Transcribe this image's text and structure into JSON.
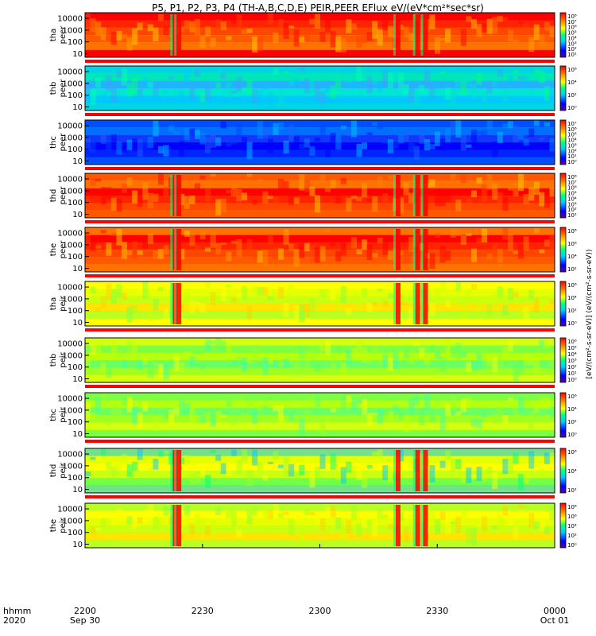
{
  "title": "P5, P1, P2, P3, P4 (TH-A,B,C,D,E) PEIR,PEER EFlux eV/(eV*cm²*sec*sr)",
  "colorbar_units": "[eV/(cm²-s-sr-eV)] (eV/(cm²-s-sr-eV))",
  "time_axis": {
    "row_label": "hhmm",
    "year": "2020",
    "ticks": [
      {
        "label": "2200",
        "sub": "Sep 30"
      },
      {
        "label": "2230",
        "sub": ""
      },
      {
        "label": "2300",
        "sub": ""
      },
      {
        "label": "2330",
        "sub": ""
      },
      {
        "label": "0000",
        "sub": "Oct 01"
      }
    ]
  },
  "colors": {
    "scale": [
      "#5a00a0",
      "#0000ff",
      "#00c8ff",
      "#00ff80",
      "#ffff00",
      "#ff8000",
      "#ff0000"
    ],
    "status_bar": "#ff0000"
  },
  "chart_data": [
    {
      "type": "heatmap",
      "probe": "tha",
      "species": "peer",
      "ylabel": [
        "tha",
        "peer"
      ],
      "yticks": [
        "10000",
        "1000",
        "100",
        "10"
      ],
      "ylim": [
        5,
        30000
      ],
      "ylog": true,
      "cbar_ticks": [
        "10⁸",
        "10⁷",
        "10⁶",
        "10⁵",
        "10⁴",
        "10³",
        "10²",
        "10¹"
      ],
      "cbar_range": [
        1,
        100000000
      ],
      "dominant": "red-orange",
      "burst_times": [
        "22:23",
        "22:24",
        "23:20",
        "23:25",
        "23:27"
      ]
    },
    {
      "type": "heatmap",
      "probe": "thb",
      "species": "peer",
      "ylabel": [
        "thb",
        "peer"
      ],
      "yticks": [
        "10000",
        "1000",
        "100",
        "10"
      ],
      "ylim": [
        5,
        30000
      ],
      "ylog": true,
      "cbar_ticks": [
        "10⁶",
        "10⁴",
        "10²",
        "10⁰"
      ],
      "cbar_range": [
        1,
        10000000
      ],
      "dominant": "cyan-green",
      "burst_times": []
    },
    {
      "type": "heatmap",
      "probe": "thc",
      "species": "peer",
      "ylabel": [
        "thc",
        "peer"
      ],
      "yticks": [
        "10000",
        "1000",
        "100",
        "10"
      ],
      "ylim": [
        5,
        30000
      ],
      "ylog": true,
      "cbar_ticks": [
        "10⁷",
        "10⁶",
        "10⁵",
        "10⁴",
        "10³",
        "10²",
        "10¹",
        "10⁰"
      ],
      "cbar_range": [
        1,
        10000000
      ],
      "dominant": "blue-cyan",
      "burst_times": []
    },
    {
      "type": "heatmap",
      "probe": "thd",
      "species": "peer",
      "ylabel": [
        "thd",
        "peer"
      ],
      "yticks": [
        "10000",
        "1000",
        "100",
        "10"
      ],
      "ylim": [
        5,
        30000
      ],
      "ylog": true,
      "cbar_ticks": [
        "10⁸",
        "10⁷",
        "10⁶",
        "10⁵",
        "10⁴",
        "10³",
        "10²",
        "10¹"
      ],
      "cbar_range": [
        1,
        100000000
      ],
      "dominant": "red-orange",
      "burst_times": [
        "22:23",
        "22:24",
        "23:20",
        "23:25",
        "23:27"
      ]
    },
    {
      "type": "heatmap",
      "probe": "the",
      "species": "peer",
      "ylabel": [
        "the",
        "peer"
      ],
      "yticks": [
        "10000",
        "1000",
        "100",
        "10"
      ],
      "ylim": [
        5,
        30000
      ],
      "ylog": true,
      "cbar_ticks": [
        "10⁸",
        "10⁶",
        "10⁴",
        "10²"
      ],
      "cbar_range": [
        10,
        100000000
      ],
      "dominant": "red-orange",
      "burst_times": [
        "22:23",
        "22:24",
        "23:20",
        "23:25",
        "23:27"
      ]
    },
    {
      "type": "heatmap",
      "probe": "tha",
      "species": "peir",
      "ylabel": [
        "tha",
        "peir"
      ],
      "yticks": [
        "10000",
        "1000",
        "100",
        "10"
      ],
      "ylim": [
        5,
        30000
      ],
      "ylog": true,
      "cbar_ticks": [
        "10⁶",
        "10⁴",
        "10²",
        "10⁰"
      ],
      "cbar_range": [
        1,
        10000000
      ],
      "dominant": "yellow-green",
      "burst_times": [
        "22:23",
        "22:24",
        "23:20",
        "23:25",
        "23:27"
      ]
    },
    {
      "type": "heatmap",
      "probe": "thb",
      "species": "peir",
      "ylabel": [
        "thb",
        "peir"
      ],
      "yticks": [
        "10000",
        "1000",
        "100",
        "10"
      ],
      "ylim": [
        5,
        30000
      ],
      "ylog": true,
      "cbar_ticks": [
        "10⁶",
        "10⁵",
        "10⁴",
        "10³",
        "10²",
        "10¹",
        "10⁰"
      ],
      "cbar_range": [
        1,
        1000000
      ],
      "dominant": "green-yellow",
      "burst_times": []
    },
    {
      "type": "heatmap",
      "probe": "thc",
      "species": "peir",
      "ylabel": [
        "thc",
        "peir"
      ],
      "yticks": [
        "10000",
        "1000",
        "100",
        "10"
      ],
      "ylim": [
        5,
        30000
      ],
      "ylog": true,
      "cbar_ticks": [
        "10⁶",
        "10⁴",
        "10²",
        "10⁰"
      ],
      "cbar_range": [
        1,
        1000000
      ],
      "dominant": "green-yellow",
      "burst_times": []
    },
    {
      "type": "heatmap",
      "probe": "thd",
      "species": "peir",
      "ylabel": [
        "thd",
        "peir"
      ],
      "yticks": [
        "10000",
        "1000",
        "100",
        "10"
      ],
      "ylim": [
        5,
        30000
      ],
      "ylog": true,
      "cbar_ticks": [
        "10⁶",
        "10⁴",
        "10²"
      ],
      "cbar_range": [
        10,
        10000000
      ],
      "dominant": "yellow-cyan",
      "burst_times": [
        "22:23",
        "22:24",
        "23:20",
        "23:25",
        "23:27"
      ]
    },
    {
      "type": "heatmap",
      "probe": "the",
      "species": "peir",
      "ylabel": [
        "the",
        "peir"
      ],
      "yticks": [
        "10000",
        "1000",
        "100",
        "10"
      ],
      "ylim": [
        5,
        30000
      ],
      "ylog": true,
      "cbar_ticks": [
        "10⁸",
        "10⁶",
        "10⁴",
        "10²",
        "10⁰"
      ],
      "cbar_range": [
        1,
        100000000
      ],
      "dominant": "yellow-green",
      "burst_times": [
        "22:23",
        "22:24",
        "23:20",
        "23:25",
        "23:27"
      ]
    }
  ]
}
